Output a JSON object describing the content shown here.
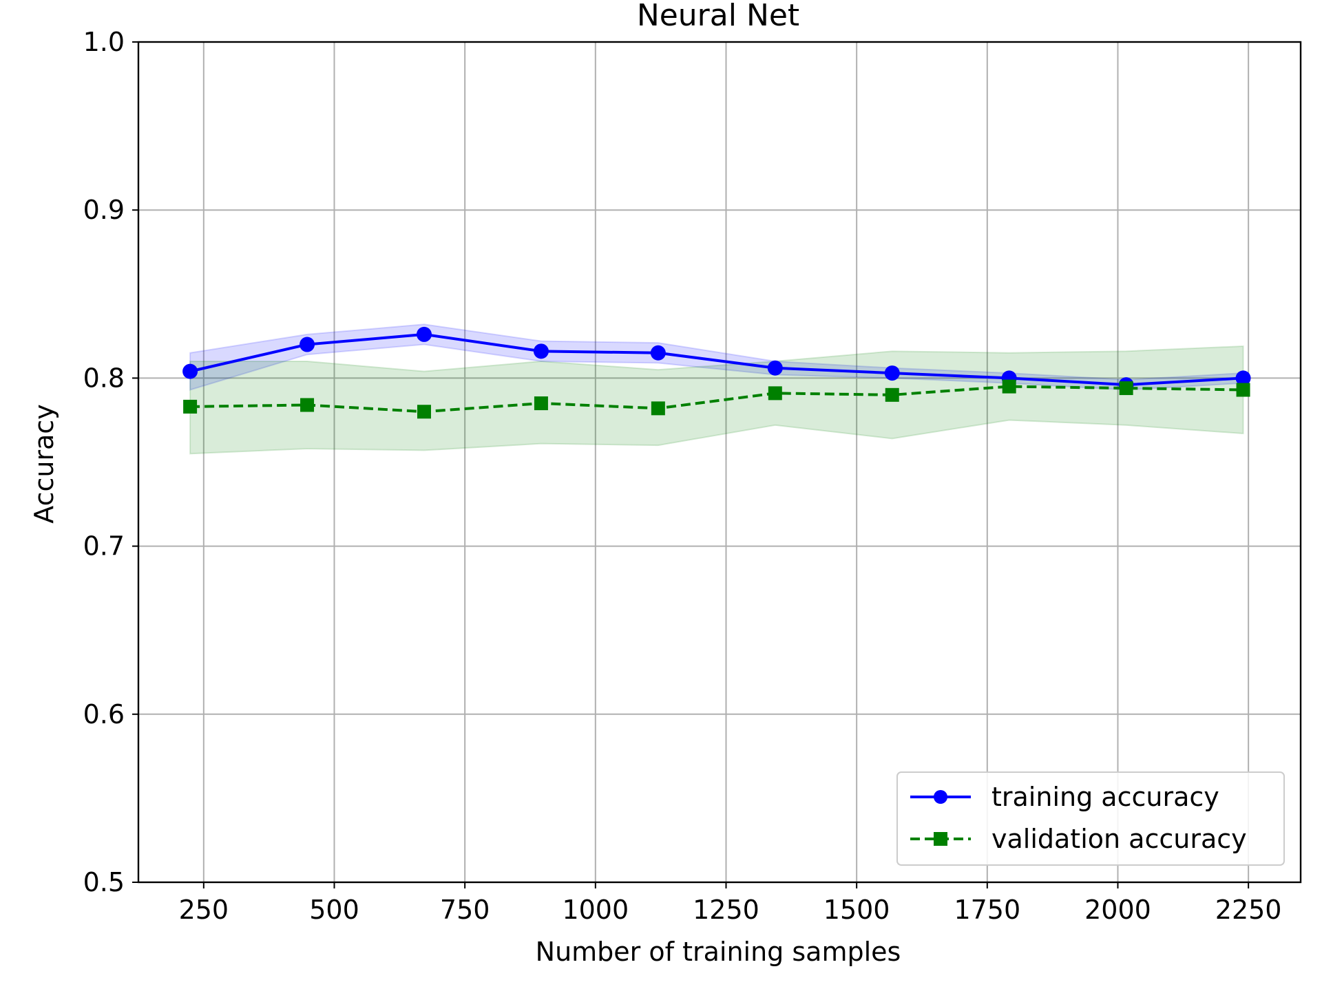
{
  "chart_data": {
    "type": "line",
    "title": "Neural Net",
    "xlabel": "Number of training samples",
    "ylabel": "Accuracy",
    "xlim": [
      125,
      2350
    ],
    "ylim": [
      0.5,
      1.0
    ],
    "xticks": [
      250,
      500,
      750,
      1000,
      1250,
      1500,
      1750,
      2000,
      2250
    ],
    "yticks": [
      0.5,
      0.6,
      0.7,
      0.8,
      0.9,
      1.0
    ],
    "ytick_labels": [
      "0.5",
      "0.6",
      "0.7",
      "0.8",
      "0.9",
      "1.0"
    ],
    "grid": true,
    "legend_position": "lower-right",
    "x": [
      224,
      448,
      672,
      896,
      1120,
      1344,
      1568,
      1792,
      2016,
      2240
    ],
    "series": [
      {
        "name": "training accuracy",
        "color": "#0000ff",
        "marker": "circle",
        "linestyle": "solid",
        "values": [
          0.804,
          0.82,
          0.826,
          0.816,
          0.815,
          0.806,
          0.803,
          0.8,
          0.796,
          0.8
        ],
        "band_upper": [
          0.815,
          0.826,
          0.832,
          0.822,
          0.821,
          0.81,
          0.806,
          0.803,
          0.799,
          0.803
        ],
        "band_lower": [
          0.793,
          0.814,
          0.82,
          0.81,
          0.809,
          0.802,
          0.8,
          0.797,
          0.793,
          0.797
        ]
      },
      {
        "name": "validation accuracy",
        "color": "#008000",
        "marker": "square",
        "linestyle": "dashed",
        "values": [
          0.783,
          0.784,
          0.78,
          0.785,
          0.782,
          0.791,
          0.79,
          0.795,
          0.794,
          0.793
        ],
        "band_upper": [
          0.81,
          0.81,
          0.804,
          0.81,
          0.805,
          0.81,
          0.816,
          0.815,
          0.816,
          0.819
        ],
        "band_lower": [
          0.755,
          0.758,
          0.757,
          0.761,
          0.76,
          0.772,
          0.764,
          0.775,
          0.772,
          0.767
        ]
      }
    ]
  }
}
